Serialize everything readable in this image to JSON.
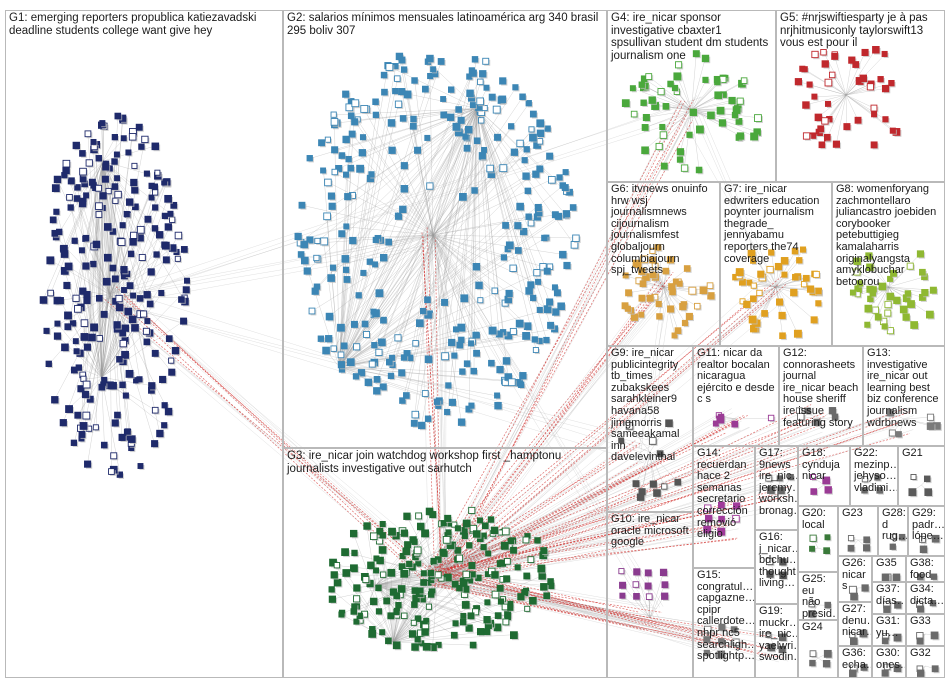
{
  "groups": [
    {
      "id": "G1",
      "label": "G1: emerging reporters propublica katiezavadski deadline students college want give hey",
      "color": "#1f2a6b",
      "nodes": 260,
      "layout": "ellipse"
    },
    {
      "id": "G2",
      "label": "G2: salarios mínimos mensuales latinoamérica arg 340 brasil 295 boliv 307",
      "color": "#3c86b5",
      "nodes": 330,
      "layout": "ring"
    },
    {
      "id": "G3",
      "label": "G3: ire_nicar join watchdog workshop first _hamptonu journalists investigative out sarhutch",
      "color": "#1f6b32",
      "nodes": 230,
      "layout": "disk"
    },
    {
      "id": "G4",
      "label": "G4: ire_nicar sponsor investigative cbaxter1 spsullivan student dm students journalism one",
      "color": "#4aa83c",
      "nodes": 60,
      "layout": "cluster"
    },
    {
      "id": "G5",
      "label": "G5: #nrjswiftiesparty je à pas nrjhitmusiconly taylorswift13 vous est pour il",
      "color": "#c0282d",
      "nodes": 45,
      "layout": "ring"
    },
    {
      "id": "G6",
      "label": "G6: itvnews onuinfo hrw wsj journalismnews cijournalism journalismfest globaljourn columbiajourn spj_tweets",
      "color": "#d8a040",
      "nodes": 45,
      "layout": "cluster"
    },
    {
      "id": "G7",
      "label": "G7: ire_nicar edwriters education poynter journalism thegrade_ jennyabamu reporters the74 coverage",
      "color": "#e0a020",
      "nodes": 45,
      "layout": "cluster"
    },
    {
      "id": "G8",
      "label": "G8: womenforyang zachmontellaro juliancastro joebiden corybooker petebuttigieg kamalaharris originalyangsta amyklobuchar betoorou",
      "color": "#8fb832",
      "nodes": 40,
      "layout": "cluster"
    },
    {
      "id": "G9",
      "label": "G9: ire_nicar publicintegrity tb_times zubakskees sarahkleiner9 havana58 jimgmorris sameeakamal inn davelevinthal",
      "color": "#555555",
      "nodes": 12,
      "layout": "cluster"
    },
    {
      "id": "G10",
      "label": "G10: ire_nicar oracle microsoft google",
      "color": "#8a3b8f",
      "nodes": 12,
      "layout": "grid"
    },
    {
      "id": "G11",
      "label": "G11: nicar da realtor bocalan nicaragua ejército e desde c s",
      "color": "#9a3b95",
      "nodes": 6,
      "layout": "cluster"
    },
    {
      "id": "G12",
      "label": "G12: connorasheets journal ire_nicar beach house sheriff ire issue featuring story",
      "color": "#6a6a6a",
      "nodes": 6,
      "layout": "cluster"
    },
    {
      "id": "G13",
      "label": "G13: investigative ire_nicar out learning best biz conference journalism wdrbnews",
      "color": "#7a7a7a",
      "nodes": 6,
      "layout": "cluster"
    },
    {
      "id": "G14",
      "label": "G14: recuerdan hace 2 semanas secretario corrección removió eligio",
      "color": "#a03a9a",
      "nodes": 8,
      "layout": "grid"
    },
    {
      "id": "G15",
      "label": "G15: congratul… capgazne… cpipr callerdote… nhpr nc5 searchligh… spotlightp…",
      "color": "#777777",
      "nodes": 8,
      "layout": "grid"
    },
    {
      "id": "G16",
      "label": "G16: j_nicar… bdchu… thought living…",
      "color": "#555555",
      "nodes": 4,
      "layout": "grid"
    },
    {
      "id": "G17",
      "label": "G17: 9news ire_nic… jeremy… worksh… bronag…",
      "color": "#666666",
      "nodes": 5,
      "layout": "grid"
    },
    {
      "id": "G18",
      "label": "G18: cynduja nicar",
      "color": "#9a3b95",
      "nodes": 4,
      "layout": "grid"
    },
    {
      "id": "G19",
      "label": "G19: muckr… ire_nic… yaelwri… swodin…",
      "color": "#666666",
      "nodes": 4,
      "layout": "grid"
    },
    {
      "id": "G20",
      "label": "G20: local",
      "color": "#3a7a3a",
      "nodes": 4,
      "layout": "grid"
    },
    {
      "id": "G21",
      "label": "G21",
      "color": "#5a5a5a",
      "nodes": 4,
      "layout": "grid"
    },
    {
      "id": "G22",
      "label": "G22: mezinp… jehyso… vladimi…",
      "color": "#6a6a6a",
      "nodes": 4,
      "layout": "grid"
    },
    {
      "id": "G23",
      "label": "G23",
      "color": "#6a6a6a",
      "nodes": 4,
      "layout": "grid"
    },
    {
      "id": "G24",
      "label": "G24",
      "color": "#6a6a6a",
      "nodes": 4,
      "layout": "grid"
    },
    {
      "id": "G25",
      "label": "G25: eu não presid…",
      "color": "#6a6a6a",
      "nodes": 3,
      "layout": "grid"
    },
    {
      "id": "G26",
      "label": "G26: nicar s",
      "color": "#6a6a6a",
      "nodes": 3,
      "layout": "grid"
    },
    {
      "id": "G27",
      "label": "G27: denu… nicar…",
      "color": "#6a6a6a",
      "nodes": 3,
      "layout": "grid"
    },
    {
      "id": "G28",
      "label": "G28: d rug…",
      "color": "#6a6a6a",
      "nodes": 3,
      "layout": "grid"
    },
    {
      "id": "G29",
      "label": "G29: padr… lópe…",
      "color": "#6a6a6a",
      "nodes": 3,
      "layout": "grid"
    },
    {
      "id": "G30",
      "label": "G30: ones…",
      "color": "#6a6a6a",
      "nodes": 3,
      "layout": "grid"
    },
    {
      "id": "G31",
      "label": "G31: yu…",
      "color": "#6a6a6a",
      "nodes": 3,
      "layout": "grid"
    },
    {
      "id": "G32",
      "label": "G32",
      "color": "#6a6a6a",
      "nodes": 3,
      "layout": "grid"
    },
    {
      "id": "G33",
      "label": "G33",
      "color": "#6a6a6a",
      "nodes": 3,
      "layout": "grid"
    },
    {
      "id": "G34",
      "label": "G34: dicta…",
      "color": "#6a6a6a",
      "nodes": 3,
      "layout": "grid"
    },
    {
      "id": "G35",
      "label": "G35",
      "color": "#6a6a6a",
      "nodes": 3,
      "layout": "grid"
    },
    {
      "id": "G36",
      "label": "G36: echa…",
      "color": "#6a6a6a",
      "nodes": 3,
      "layout": "grid"
    },
    {
      "id": "G37",
      "label": "G37: días…",
      "color": "#6a6a6a",
      "nodes": 3,
      "layout": "grid"
    },
    {
      "id": "G38",
      "label": "G38: food",
      "color": "#6a6a6a",
      "nodes": 3,
      "layout": "grid"
    }
  ],
  "edges": [
    {
      "from": "G3",
      "to": "G4"
    },
    {
      "from": "G3",
      "to": "G6"
    },
    {
      "from": "G3",
      "to": "G7"
    },
    {
      "from": "G3",
      "to": "G9"
    },
    {
      "from": "G3",
      "to": "G10"
    },
    {
      "from": "G3",
      "to": "G14"
    },
    {
      "from": "G3",
      "to": "G15"
    },
    {
      "from": "G3",
      "to": "G1"
    },
    {
      "from": "G3",
      "to": "G2"
    },
    {
      "from": "G1",
      "to": "G2"
    },
    {
      "from": "G1",
      "to": "G4"
    },
    {
      "from": "G1",
      "to": "G9"
    },
    {
      "from": "G4",
      "to": "G7"
    },
    {
      "from": "G6",
      "to": "G9"
    },
    {
      "from": "G3",
      "to": "G11"
    },
    {
      "from": "G3",
      "to": "G12"
    },
    {
      "from": "G3",
      "to": "G13"
    },
    {
      "from": "G3",
      "to": "G17"
    },
    {
      "from": "G3",
      "to": "G19"
    },
    {
      "from": "G2",
      "to": "G10"
    }
  ]
}
